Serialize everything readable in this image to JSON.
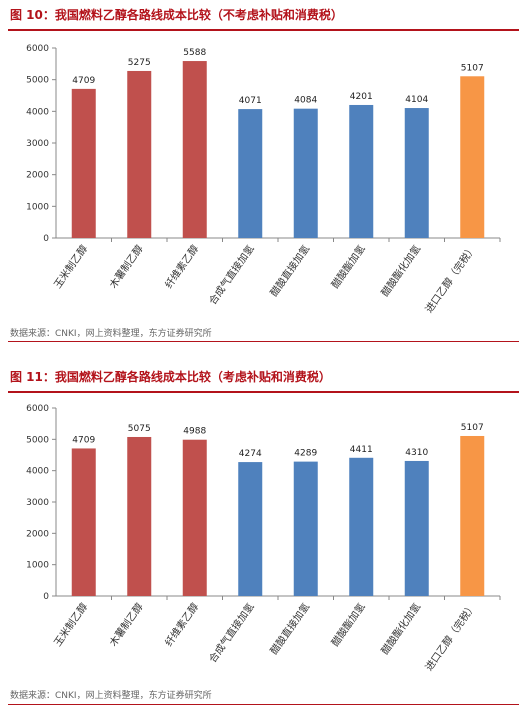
{
  "colors": {
    "red": "#c0504d",
    "blue": "#4f81bd",
    "orange": "#f79646",
    "accent": "#b3131b"
  },
  "charts": [
    {
      "title": "图 10：我国燃料乙醇各路线成本比较（不考虑补贴和消费税）",
      "source": "数据来源：CNKI，网上资料整理，东方证券研究所",
      "chart_data": {
        "type": "bar",
        "categories": [
          "玉米制乙醇",
          "木薯制乙醇",
          "纤维素乙醇",
          "合成气直接加氢",
          "醋酸直接加氢",
          "醋酸酯加氢",
          "醋酸酯化加氢",
          "进口乙醇（完税）"
        ],
        "values": [
          4709,
          5275,
          5588,
          4071,
          4084,
          4201,
          4104,
          5107
        ],
        "bar_colors": [
          "red",
          "red",
          "red",
          "blue",
          "blue",
          "blue",
          "blue",
          "orange"
        ],
        "yticks": [
          0,
          1000,
          2000,
          3000,
          4000,
          5000,
          6000
        ],
        "ylim": [
          0,
          6000
        ],
        "grid": false
      }
    },
    {
      "title": "图 11：我国燃料乙醇各路线成本比较（考虑补贴和消费税）",
      "source": "数据来源：CNKI，网上资料整理，东方证券研究所",
      "chart_data": {
        "type": "bar",
        "categories": [
          "玉米制乙醇",
          "木薯制乙醇",
          "纤维素乙醇",
          "合成气直接加氢",
          "醋酸直接加氢",
          "醋酸酯加氢",
          "醋酸酯化加氢",
          "进口乙醇（完税）"
        ],
        "values": [
          4709,
          5075,
          4988,
          4274,
          4289,
          4411,
          4310,
          5107
        ],
        "bar_colors": [
          "red",
          "red",
          "red",
          "blue",
          "blue",
          "blue",
          "blue",
          "orange"
        ],
        "yticks": [
          0,
          1000,
          2000,
          3000,
          4000,
          5000,
          6000
        ],
        "ylim": [
          0,
          6000
        ],
        "grid": false
      }
    }
  ]
}
